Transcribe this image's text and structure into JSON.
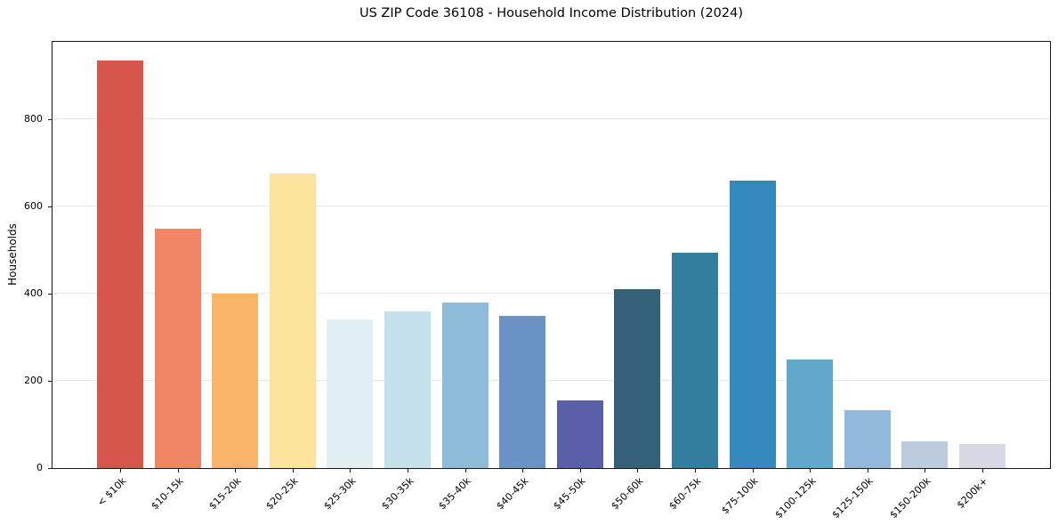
{
  "chart_data": {
    "type": "bar",
    "title": "US ZIP Code 36108 - Household Income Distribution (2024)",
    "xlabel": "",
    "ylabel": "Households",
    "categories": [
      "< $10k",
      "$10-15k",
      "$15-20k",
      "$20-25k",
      "$25-30k",
      "$30-35k",
      "$35-40k",
      "$40-45k",
      "$45-50k",
      "$50-60k",
      "$60-75k",
      "$75-100k",
      "$100-125k",
      "$125-150k",
      "$150-200k",
      "$200k+"
    ],
    "values": [
      935,
      550,
      400,
      675,
      340,
      360,
      380,
      350,
      155,
      410,
      495,
      660,
      250,
      132,
      62,
      56
    ],
    "bar_colors": [
      "#d6564c",
      "#f28565",
      "#f9b468",
      "#fde49c",
      "#e2f0f4",
      "#c5e1ec",
      "#8fbcd8",
      "#6a92c4",
      "#5a5fa8",
      "#36617a",
      "#337d9e",
      "#348abd",
      "#62a8cc",
      "#92b8dc",
      "#bdcbde",
      "#d8d9e6"
    ],
    "yticks": [
      0,
      200,
      400,
      600,
      800
    ],
    "ylim": [
      0,
      978
    ],
    "grid": "horizontal",
    "legend": "none"
  }
}
